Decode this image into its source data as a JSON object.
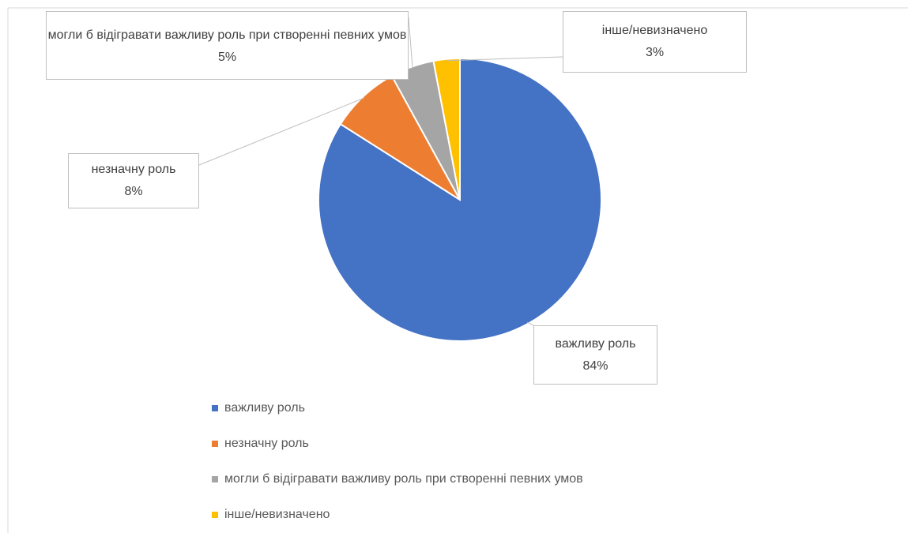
{
  "chart_data": {
    "type": "pie",
    "categories": [
      "важливу роль",
      "незначну роль",
      "могли б відігравати важливу роль при створенні певних умов",
      "інше/невизначено"
    ],
    "values": [
      84,
      8,
      5,
      3
    ],
    "value_labels": [
      "84%",
      "8%",
      "5%",
      "3%"
    ],
    "colors": [
      "#4472c4",
      "#ed7d31",
      "#a5a5a5",
      "#ffc000"
    ],
    "legend": "bottom"
  }
}
